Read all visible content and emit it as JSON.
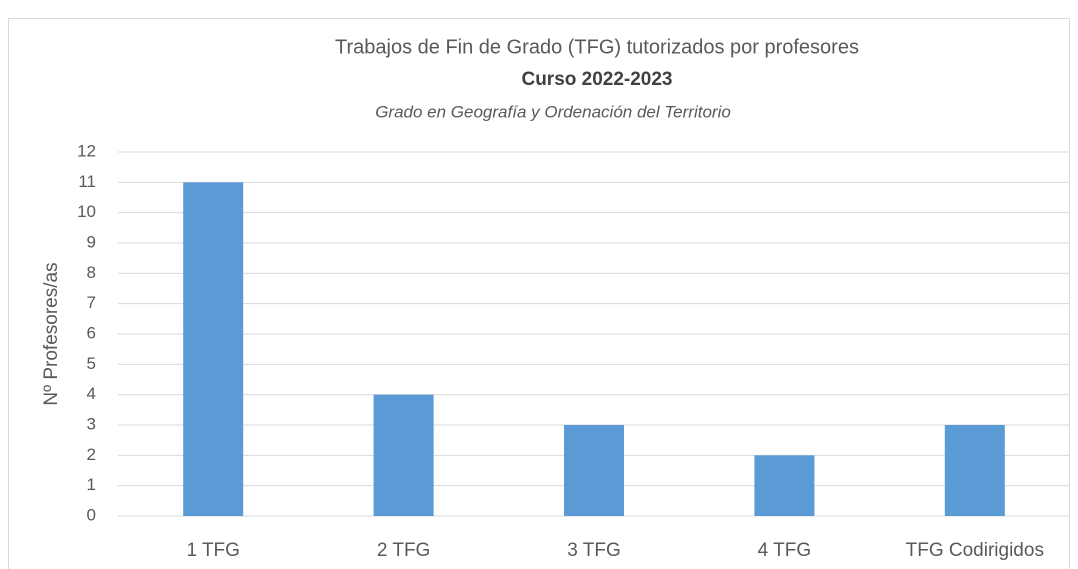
{
  "chart_data": {
    "type": "bar",
    "title": "Trabajos de Fin de Grado (TFG) tutorizados por profesores",
    "subtitle": "Curso 2022-2023",
    "annotation": "Grado en Geografía y Ordenación del Territorio",
    "ylabel": "Nº Profesores/as",
    "categories": [
      "1 TFG",
      "2 TFG",
      "3 TFG",
      "4 TFG",
      "TFG Codirigidos"
    ],
    "values": [
      11,
      4,
      3,
      2,
      3
    ],
    "color": "#5b9bd5",
    "ylim": [
      0,
      12
    ],
    "yticks": [
      0,
      1,
      2,
      3,
      4,
      5,
      6,
      7,
      8,
      9,
      10,
      11,
      12
    ],
    "grid": true
  }
}
